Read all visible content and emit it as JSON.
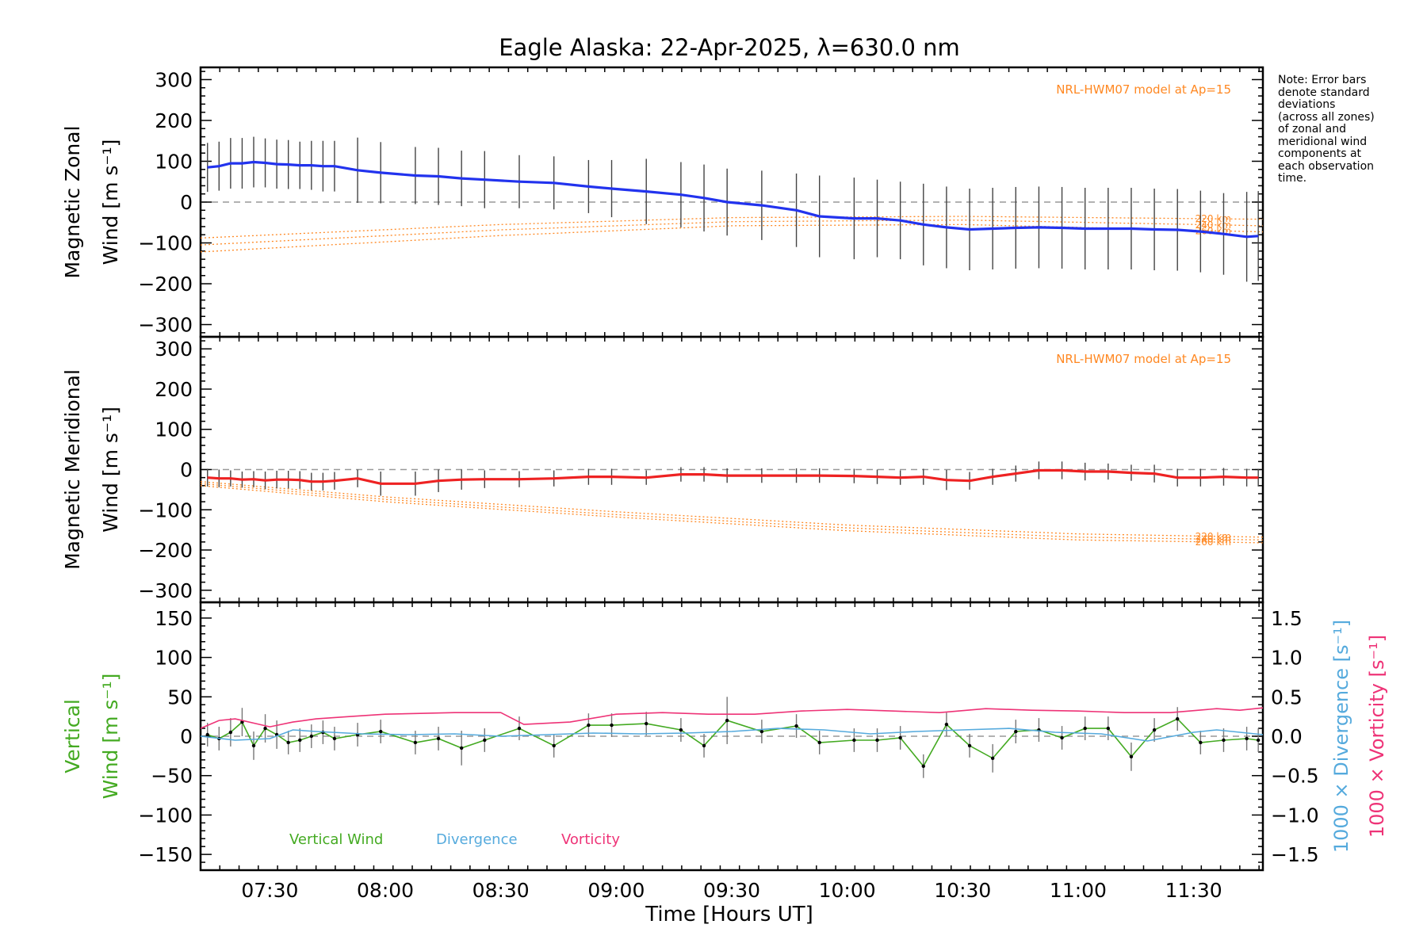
{
  "chart_data": {
    "type": "line",
    "title": "Eagle Alaska: 22-Apr-2025, λ=630.0 nm",
    "xlabel": "Time [Hours UT]",
    "xlim": [
      7.2,
      11.8
    ],
    "xticks": [
      "07:30",
      "08:00",
      "08:30",
      "09:00",
      "09:30",
      "10:00",
      "10:30",
      "11:00",
      "11:30"
    ],
    "note": [
      "Note: Error bars",
      "denote standard",
      "deviations",
      "(across all zones)",
      "of zonal and",
      "meridional wind",
      "components at",
      "each observation",
      "time."
    ],
    "panels": [
      {
        "id": "zonal",
        "ylabel": [
          "Magnetic Zonal",
          "Wind [m s⁻¹]"
        ],
        "ylim": [
          -330,
          330
        ],
        "yticks": [
          300,
          200,
          100,
          0,
          -100,
          -200,
          -300
        ],
        "model_label": "NRL-HWM07 model at Ap=15",
        "model_altitudes": [
          "220 km",
          "240 km",
          "260 km"
        ],
        "model_curves": [
          {
            "name": "220 km",
            "x": [
              7.2,
              8.5,
              9.5,
              10.5,
              11.8
            ],
            "values": [
              -88,
              -55,
              -38,
              -35,
              -42
            ]
          },
          {
            "name": "240 km",
            "x": [
              7.2,
              8.5,
              9.5,
              10.5,
              11.8
            ],
            "values": [
              -105,
              -68,
              -48,
              -44,
              -58
            ]
          },
          {
            "name": "260 km",
            "x": [
              7.2,
              8.5,
              9.5,
              10.5,
              11.8
            ],
            "values": [
              -122,
              -82,
              -58,
              -55,
              -73
            ]
          }
        ],
        "series": [
          {
            "name": "Magnetic Zonal Wind",
            "color": "#2233ee",
            "x": [
              7.23,
              7.28,
              7.33,
              7.38,
              7.43,
              7.48,
              7.53,
              7.58,
              7.63,
              7.68,
              7.73,
              7.78,
              7.88,
              7.98,
              8.13,
              8.23,
              8.33,
              8.43,
              8.58,
              8.73,
              8.88,
              8.98,
              9.13,
              9.28,
              9.38,
              9.48,
              9.63,
              9.78,
              9.88,
              10.03,
              10.13,
              10.23,
              10.33,
              10.43,
              10.53,
              10.63,
              10.73,
              10.83,
              10.93,
              11.03,
              11.13,
              11.23,
              11.33,
              11.43,
              11.53,
              11.63,
              11.73,
              11.78
            ],
            "values": [
              85,
              88,
              95,
              95,
              98,
              96,
              93,
              92,
              90,
              90,
              88,
              88,
              78,
              72,
              65,
              63,
              58,
              55,
              50,
              47,
              38,
              33,
              26,
              18,
              10,
              0,
              -8,
              -20,
              -35,
              -40,
              -40,
              -45,
              -55,
              -62,
              -67,
              -65,
              -63,
              -62,
              -63,
              -65,
              -65,
              -65,
              -67,
              -68,
              -72,
              -78,
              -85,
              -83
            ],
            "errors": [
              60,
              60,
              62,
              62,
              62,
              60,
              60,
              60,
              58,
              60,
              62,
              62,
              80,
              75,
              70,
              70,
              68,
              70,
              65,
              65,
              65,
              70,
              80,
              80,
              82,
              82,
              85,
              90,
              100,
              100,
              95,
              95,
              100,
              100,
              100,
              100,
              100,
              100,
              100,
              100,
              100,
              100,
              100,
              100,
              100,
              100,
              110,
              110
            ]
          }
        ]
      },
      {
        "id": "meridional",
        "ylabel": [
          "Magnetic Meridional",
          "Wind [m s⁻¹]"
        ],
        "ylim": [
          -330,
          330
        ],
        "yticks": [
          300,
          200,
          100,
          0,
          -100,
          -200,
          -300
        ],
        "model_label": "NRL-HWM07 model at Ap=15",
        "model_altitudes": [
          "220 km",
          "240 km",
          "260 km"
        ],
        "model_curves": [
          {
            "name": "220 km",
            "x": [
              7.2,
              8.0,
              9.0,
              10.0,
              11.0,
              11.8
            ],
            "values": [
              -30,
              -68,
              -105,
              -138,
              -160,
              -168
            ]
          },
          {
            "name": "240 km",
            "x": [
              7.2,
              8.0,
              9.0,
              10.0,
              11.0,
              11.8
            ],
            "values": [
              -35,
              -74,
              -112,
              -145,
              -168,
              -175
            ]
          },
          {
            "name": "260 km",
            "x": [
              7.2,
              8.0,
              9.0,
              10.0,
              11.0,
              11.8
            ],
            "values": [
              -40,
              -80,
              -118,
              -152,
              -175,
              -182
            ]
          }
        ],
        "series": [
          {
            "name": "Magnetic Meridional Wind",
            "color": "#ee2222",
            "x": [
              7.23,
              7.28,
              7.33,
              7.38,
              7.43,
              7.48,
              7.53,
              7.58,
              7.63,
              7.68,
              7.73,
              7.78,
              7.88,
              7.98,
              8.13,
              8.23,
              8.33,
              8.43,
              8.58,
              8.73,
              8.88,
              8.98,
              9.13,
              9.28,
              9.38,
              9.48,
              9.63,
              9.78,
              9.88,
              10.03,
              10.13,
              10.23,
              10.33,
              10.43,
              10.53,
              10.63,
              10.73,
              10.83,
              10.93,
              11.03,
              11.13,
              11.23,
              11.33,
              11.43,
              11.53,
              11.63,
              11.73,
              11.78
            ],
            "values": [
              -20,
              -22,
              -22,
              -25,
              -24,
              -27,
              -25,
              -25,
              -26,
              -30,
              -30,
              -28,
              -22,
              -35,
              -35,
              -28,
              -25,
              -24,
              -24,
              -22,
              -18,
              -18,
              -20,
              -12,
              -12,
              -15,
              -15,
              -15,
              -15,
              -16,
              -18,
              -20,
              -18,
              -26,
              -28,
              -18,
              -10,
              -2,
              -2,
              -5,
              -5,
              -8,
              -10,
              -20,
              -20,
              -18,
              -20,
              -20
            ],
            "errors": [
              22,
              22,
              20,
              20,
              20,
              22,
              22,
              22,
              22,
              22,
              22,
              22,
              22,
              30,
              30,
              28,
              25,
              22,
              20,
              20,
              20,
              20,
              18,
              18,
              18,
              18,
              18,
              18,
              18,
              18,
              18,
              18,
              20,
              25,
              22,
              20,
              20,
              22,
              22,
              22,
              20,
              20,
              22,
              22,
              22,
              22,
              22,
              22
            ]
          }
        ]
      },
      {
        "id": "vertical",
        "ylabel": [
          "Vertical",
          "Wind [m s⁻¹]"
        ],
        "ylim": [
          -170,
          170
        ],
        "yticks": [
          150,
          100,
          50,
          0,
          -50,
          -100,
          -150
        ],
        "y2label": [
          "1000 × Divergence [s⁻¹]",
          "1000 × Vorticity [s⁻¹]"
        ],
        "y2lim": [
          -1.7,
          1.7
        ],
        "y2ticks": [
          "1.5",
          "1.0",
          "0.5",
          "0.0",
          "−0.5",
          "−1.0",
          "−1.5"
        ],
        "legend": [
          "Vertical Wind",
          "Divergence",
          "Vorticity"
        ],
        "series": [
          {
            "name": "Vertical Wind",
            "color": "#44aa22",
            "x": [
              7.23,
              7.28,
              7.33,
              7.38,
              7.43,
              7.48,
              7.53,
              7.58,
              7.63,
              7.68,
              7.73,
              7.78,
              7.88,
              7.98,
              8.13,
              8.23,
              8.33,
              8.43,
              8.58,
              8.73,
              8.88,
              8.98,
              9.13,
              9.28,
              9.38,
              9.48,
              9.63,
              9.78,
              9.88,
              10.03,
              10.13,
              10.23,
              10.33,
              10.43,
              10.53,
              10.63,
              10.73,
              10.83,
              10.93,
              11.03,
              11.13,
              11.23,
              11.33,
              11.43,
              11.53,
              11.63,
              11.73,
              11.78
            ],
            "values": [
              2,
              -3,
              5,
              18,
              -12,
              10,
              2,
              -8,
              -5,
              0,
              5,
              -3,
              2,
              6,
              -8,
              -3,
              -15,
              -5,
              10,
              -12,
              14,
              14,
              16,
              8,
              -12,
              20,
              6,
              13,
              -8,
              -5,
              -5,
              -2,
              -38,
              15,
              -12,
              -28,
              6,
              8,
              -2,
              10,
              10,
              -26,
              8,
              22,
              -8,
              -5,
              -3,
              -5
            ],
            "errors": [
              15,
              15,
              18,
              18,
              18,
              18,
              18,
              15,
              15,
              15,
              15,
              15,
              15,
              15,
              15,
              15,
              22,
              15,
              15,
              15,
              15,
              15,
              15,
              15,
              15,
              30,
              15,
              15,
              15,
              15,
              15,
              15,
              15,
              15,
              15,
              18,
              15,
              15,
              15,
              15,
              15,
              18,
              15,
              15,
              15,
              15,
              15,
              15
            ]
          },
          {
            "name": "Divergence",
            "color": "#55aadd",
            "axis": "right",
            "x": [
              7.2,
              7.35,
              7.5,
              7.6,
              7.7,
              7.9,
              8.1,
              8.3,
              8.5,
              8.7,
              8.9,
              9.1,
              9.3,
              9.5,
              9.7,
              9.9,
              10.1,
              10.3,
              10.5,
              10.7,
              10.9,
              11.1,
              11.3,
              11.5,
              11.6,
              11.8
            ],
            "values": [
              0.0,
              -0.05,
              -0.03,
              0.08,
              0.06,
              0.03,
              0.02,
              0.03,
              0.0,
              0.02,
              0.04,
              0.03,
              0.04,
              0.06,
              0.1,
              0.08,
              0.03,
              0.06,
              0.08,
              0.1,
              0.05,
              0.03,
              -0.06,
              0.05,
              0.08,
              0.02
            ]
          },
          {
            "name": "Vorticity",
            "color": "#ee3377",
            "axis": "right",
            "x": [
              7.2,
              7.28,
              7.35,
              7.5,
              7.6,
              7.7,
              7.85,
              8.0,
              8.3,
              8.5,
              8.6,
              8.8,
              9.0,
              9.2,
              9.4,
              9.6,
              9.8,
              10.0,
              10.2,
              10.4,
              10.6,
              10.8,
              11.0,
              11.2,
              11.4,
              11.6,
              11.7,
              11.8
            ],
            "values": [
              0.1,
              0.2,
              0.22,
              0.12,
              0.18,
              0.22,
              0.25,
              0.28,
              0.3,
              0.3,
              0.15,
              0.18,
              0.28,
              0.3,
              0.28,
              0.28,
              0.32,
              0.34,
              0.32,
              0.3,
              0.35,
              0.33,
              0.32,
              0.3,
              0.3,
              0.35,
              0.33,
              0.36
            ]
          }
        ]
      }
    ]
  }
}
